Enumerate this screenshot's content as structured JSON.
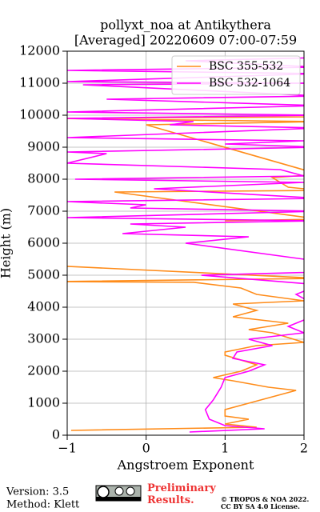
{
  "chart_data": {
    "type": "line",
    "title": "pollyxt_noa at Antikythera",
    "subtitle": "[Averaged] 20220609 07:00-07:59",
    "x_label": "Angstroem Exponent",
    "y_label": "Height (m)",
    "xlim": [
      -1,
      2
    ],
    "ylim": [
      0,
      12000
    ],
    "xticks": [
      {
        "value": -1,
        "label": "−1"
      },
      0,
      1,
      2
    ],
    "yticks": [
      0,
      1000,
      2000,
      3000,
      4000,
      5000,
      6000,
      7000,
      8000,
      9000,
      10000,
      11000,
      12000
    ],
    "grid": true,
    "legend": "upper right",
    "series": [
      {
        "name": "BSC 355-532",
        "color": "#ff8c1a",
        "heights": [
          150,
          250,
          350,
          500,
          600,
          800,
          1000,
          1200,
          1400,
          1500,
          1700,
          1800,
          2000,
          2200,
          2500,
          2600,
          2800,
          2900,
          3200,
          3300,
          3500,
          3700,
          3900,
          4100,
          4200,
          4400,
          4600,
          4780,
          4800,
          4900,
          5300,
          5350,
          6700,
          6750,
          7600,
          7650,
          7750,
          8050,
          8150,
          9700,
          9800,
          9900,
          9950
        ],
        "values": [
          -0.95,
          1.4,
          1.0,
          1.3,
          1.0,
          1.0,
          1.3,
          1.6,
          1.9,
          1.55,
          1.1,
          0.85,
          1.2,
          1.4,
          1.0,
          1.0,
          1.4,
          2.0,
          1.6,
          1.3,
          1.8,
          1.1,
          1.4,
          1.1,
          2.0,
          1.4,
          1.2,
          0.6,
          -1.2,
          2.2,
          -1.2,
          null,
          1.0,
          2.2,
          -0.4,
          2.2,
          1.8,
          1.6,
          2.2,
          0.0,
          2.2,
          -1.2,
          2.2
        ]
      },
      {
        "name": "BSC 532-1064",
        "color": "#ff00ff",
        "heights": [
          100,
          200,
          300,
          500,
          800,
          1100,
          1500,
          1800,
          2000,
          2200,
          2400,
          2600,
          2800,
          3000,
          3200,
          3400,
          3600,
          4000,
          4400,
          4700,
          5000,
          5100,
          5500,
          6000,
          6200,
          6300,
          6500,
          6600,
          6700,
          6800,
          7000,
          7100,
          7200,
          7300,
          7400,
          7700,
          7900,
          8000,
          8100,
          8300,
          8500,
          8800,
          8850,
          9000,
          9100,
          9200,
          9300,
          9600,
          9700,
          9800,
          9900,
          10000,
          10100,
          10300,
          10500,
          10600,
          10950,
          11000,
          11050,
          11300,
          11400,
          11500,
          11700,
          11800
        ],
        "values": [
          0.55,
          1.5,
          1.0,
          0.8,
          0.75,
          0.85,
          0.95,
          1.0,
          1.3,
          1.5,
          1.1,
          1.15,
          1.6,
          1.3,
          2.0,
          1.8,
          2.0,
          2.2,
          1.9,
          2.2,
          0.7,
          2.2,
          2.0,
          0.5,
          1.3,
          -0.3,
          0.5,
          -0.2,
          2.2,
          -1.0,
          2.2,
          -0.2,
          0.0,
          -1.0,
          2.2,
          0.1,
          2.0,
          -0.9,
          2.0,
          1.7,
          -1.0,
          -0.5,
          -1.0,
          2.2,
          1.0,
          2.0,
          -1.0,
          2.2,
          0.3,
          0.6,
          -1.0,
          2.2,
          -1.0,
          2.2,
          -0.5,
          2.2,
          -0.8,
          2.2,
          -1.0,
          2.2,
          -1.0,
          2.2,
          0.5,
          2.2
        ]
      }
    ]
  },
  "footer": {
    "version": "Version: 3.5",
    "method": "Method: Klett",
    "notice": "Preliminary Results.",
    "copyright": "© TROPOS & NOA 2022.",
    "license": "CC BY SA 4.0 License."
  }
}
